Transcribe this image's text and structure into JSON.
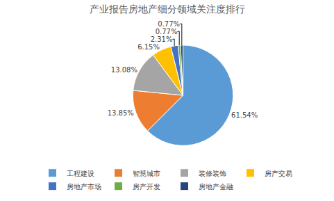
{
  "chart_data": {
    "type": "pie",
    "title": "产业报告房地产细分领域关注度排行",
    "categories": [
      "工程建设",
      "智慧城市",
      "装修装饰",
      "房产交易",
      "房地产市场",
      "房产开发",
      "房地产金融"
    ],
    "values": [
      61.54,
      13.85,
      13.08,
      6.15,
      2.31,
      0.77,
      0.77
    ],
    "value_labels": [
      "61.54%",
      "13.85%",
      "13.08%",
      "6.15%",
      "2.31%",
      "0.77%",
      "0.77%"
    ],
    "colors": [
      "#5B9BD5",
      "#ED7D31",
      "#A5A5A5",
      "#FFC000",
      "#4472C4",
      "#70AD47",
      "#264478"
    ],
    "data_labels": true,
    "legend": "bottom"
  }
}
